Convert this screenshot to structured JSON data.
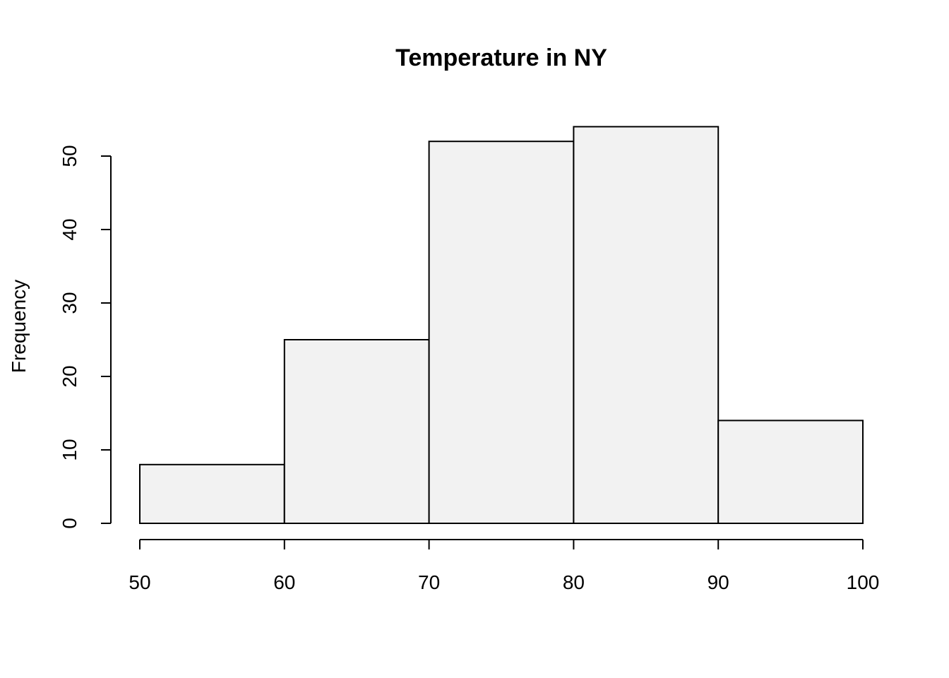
{
  "chart_data": {
    "type": "bar",
    "subtype": "histogram",
    "title": "Temperature in NY",
    "xlabel": "",
    "ylabel": "Frequency",
    "bins": [
      {
        "start": 50,
        "end": 60,
        "value": 8
      },
      {
        "start": 60,
        "end": 70,
        "value": 25
      },
      {
        "start": 70,
        "end": 80,
        "value": 52
      },
      {
        "start": 80,
        "end": 90,
        "value": 54
      },
      {
        "start": 90,
        "end": 100,
        "value": 14
      }
    ],
    "xlim": [
      50,
      100
    ],
    "ylim": [
      0,
      54
    ],
    "x_ticks": [
      50,
      60,
      70,
      80,
      90,
      100
    ],
    "y_ticks": [
      0,
      10,
      20,
      30,
      40,
      50
    ],
    "grid": false,
    "bar_fill": "#f2f2f2",
    "bar_stroke": "#000000"
  }
}
